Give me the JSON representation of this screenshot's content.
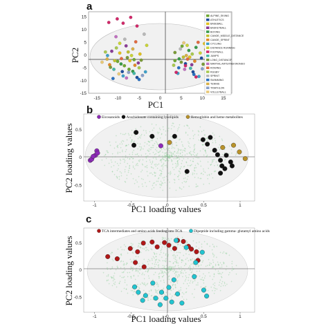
{
  "panels": [
    {
      "letter": "a",
      "xlabel": "PC1",
      "ylabel": "PC2",
      "x_ticks": [
        -15,
        -10,
        -5,
        0,
        5,
        10,
        15
      ],
      "y_ticks": [
        -15,
        -10,
        -5,
        0,
        5,
        10,
        15
      ],
      "legend": [
        {
          "label": "ALPINE_SKIING",
          "color": "#6fa832"
        },
        {
          "label": "ATHLETICS",
          "color": "#1f4e9c"
        },
        {
          "label": "BASEBALL",
          "color": "#e0c020"
        },
        {
          "label": "BASKETBALL",
          "color": "#8a3c96"
        },
        {
          "label": "BOXING",
          "color": "#3a9a4a"
        },
        {
          "label": "CANOE_MIDDLE_DISTANCE",
          "color": "#c0c030"
        },
        {
          "label": "CANOE_SPRINT",
          "color": "#e08a2a"
        },
        {
          "label": "CYCLING",
          "color": "#3fa0c8"
        },
        {
          "label": "DISTANCE RUNNING",
          "color": "#c8d238"
        },
        {
          "label": "FOOTBALL",
          "color": "#d02a6a"
        },
        {
          "label": "JUMPS",
          "color": "#48b8a8"
        },
        {
          "label": "LONG_DISTANCE",
          "color": "#7a9a38"
        },
        {
          "label": "MARTIAL ARTS/TAEKWONDO",
          "color": "#c070c0"
        },
        {
          "label": "ROWING",
          "color": "#e06a40"
        },
        {
          "label": "RUGBY",
          "color": "#a8c850"
        },
        {
          "label": "SPRINT",
          "color": "#b8b8b8"
        },
        {
          "label": "SWIMMING",
          "color": "#2a70c0"
        },
        {
          "label": "TENNIS",
          "color": "#d8b048"
        },
        {
          "label": "TRIATHLON",
          "color": "#8aa0c8"
        },
        {
          "label": "VOLLEYBALL",
          "color": "#e8c878"
        }
      ]
    },
    {
      "letter": "b",
      "xlabel": "PC1 loading values",
      "ylabel": "PC2 loading values",
      "x_ticks": [
        "-1",
        "-0.5",
        "0",
        "0.5",
        "1"
      ],
      "y_ticks": [
        "0.5",
        "0",
        "-0.5"
      ],
      "legend": [
        {
          "label": "Eicosanoids",
          "color": "#8e2bb8"
        },
        {
          "label": "Arachidonate containing lysolipids",
          "color": "#111111"
        },
        {
          "label": "Hemoglobin and heme metabolites",
          "color": "#b8922a"
        }
      ]
    },
    {
      "letter": "c",
      "xlabel": "PC1 loading values",
      "ylabel": "PC2 loading values",
      "x_ticks": [
        "-1",
        "-0.5",
        "0",
        "0.5",
        "1"
      ],
      "y_ticks": [
        "0.5",
        "0",
        "-0.5"
      ],
      "legend": [
        {
          "label": "TCA intermediates and amino acids feeding into TCA",
          "color": "#b01818"
        },
        {
          "label": "Dipeptide including gamma- glutamyl amino acids",
          "color": "#22c4d0"
        }
      ]
    }
  ],
  "chart_data": [
    {
      "type": "scatter",
      "title": "",
      "xlabel": "PC1",
      "ylabel": "PC2",
      "xlim": [
        -17,
        17
      ],
      "ylim": [
        -15,
        17
      ],
      "grid": false,
      "legend_placement": "right",
      "series": [
        {
          "name": "ALPINE_SKIING",
          "points": [
            [
              -8.5,
              -4.2
            ],
            [
              -6.2,
              -1.8
            ],
            [
              -10.1,
              -2.5
            ],
            [
              3.5,
              -2.2
            ],
            [
              5.2,
              3.5
            ],
            [
              -7.4,
              -5.6
            ]
          ]
        },
        {
          "name": "ATHLETICS",
          "points": [
            [
              -5.5,
              -8.8
            ],
            [
              6.0,
              -3.4
            ],
            [
              9.8,
              -1.2
            ],
            [
              -9.0,
              -6.5
            ],
            [
              7.8,
              -6.6
            ]
          ]
        },
        {
          "name": "BASEBALL",
          "points": [
            [
              -7.2,
              -2.2
            ],
            [
              7.0,
              -0.8
            ],
            [
              -4.8,
              0.4
            ],
            [
              10.5,
              4.5
            ],
            [
              -9.6,
              0.8
            ]
          ]
        },
        {
          "name": "BASKETBALL",
          "points": [
            [
              -11.5,
              1.5
            ],
            [
              -8.1,
              3.6
            ],
            [
              7.5,
              -3.8
            ],
            [
              -5.2,
              -3.1
            ]
          ]
        },
        {
          "name": "BOXING",
          "points": [
            [
              -9.3,
              -3.5
            ],
            [
              4.5,
              -1.5
            ],
            [
              8.5,
              3.0
            ],
            [
              -6.5,
              -6.4
            ],
            [
              6.8,
              1.8
            ]
          ]
        },
        {
          "name": "CANOE_MIDDLE_DISTANCE",
          "points": [
            [
              -10.8,
              -2.2
            ],
            [
              5.5,
              -0.8
            ],
            [
              -7.6,
              1.2
            ]
          ]
        },
        {
          "name": "CANOE_SPRINT",
          "points": [
            [
              -6.0,
              -4.0
            ],
            [
              8.2,
              -2.4
            ],
            [
              -12.0,
              -3.8
            ],
            [
              10.8,
              2.2
            ]
          ]
        },
        {
          "name": "CYCLING",
          "points": [
            [
              -12.5,
              -0.2
            ],
            [
              4.2,
              -7.2
            ],
            [
              -3.5,
              -6.6
            ],
            [
              9.2,
              -8.4
            ],
            [
              -8.8,
              -8.2
            ]
          ]
        },
        {
          "name": "DISTANCE RUNNING",
          "points": [
            [
              -9.6,
              4.6
            ],
            [
              -6.8,
              -0.2
            ],
            [
              6.4,
              3.8
            ],
            [
              -3.2,
              3.8
            ],
            [
              9.5,
              0.8
            ]
          ]
        },
        {
          "name": "FOOTBALL",
          "points": [
            [
              -10.2,
              14.2
            ],
            [
              -7.0,
              14.8
            ],
            [
              -8.8,
              12.5
            ],
            [
              -12.2,
              12.8
            ],
            [
              -5.5,
              11.4
            ],
            [
              6.0,
              -4.2
            ],
            [
              3.8,
              -6.8
            ],
            [
              8.5,
              -8.6
            ]
          ]
        },
        {
          "name": "JUMPS",
          "points": [
            [
              -6.2,
              -7.2
            ],
            [
              7.2,
              -5.2
            ],
            [
              -11.0,
              -5.6
            ]
          ]
        },
        {
          "name": "LONG_DISTANCE",
          "points": [
            [
              -11.8,
              -4.8
            ],
            [
              -7.8,
              -1.0
            ],
            [
              5.0,
              -2.8
            ],
            [
              10.2,
              -3.6
            ],
            [
              -4.5,
              -2.0
            ],
            [
              3.5,
              1.0
            ]
          ]
        },
        {
          "name": "MARTIAL ARTS/TAEKWONDO",
          "points": [
            [
              -8.0,
              -9.0
            ],
            [
              5.8,
              -5.6
            ],
            [
              -10.5,
              7.2
            ]
          ]
        },
        {
          "name": "ROWING",
          "points": [
            [
              -5.8,
              5.2
            ],
            [
              9.0,
              5.0
            ],
            [
              -9.2,
              -1.4
            ],
            [
              6.5,
              -1.6
            ]
          ]
        },
        {
          "name": "RUGBY",
          "points": [
            [
              -10.4,
              2.8
            ],
            [
              3.2,
              -4.0
            ],
            [
              -5.0,
              -5.0
            ],
            [
              7.6,
              0.4
            ],
            [
              -13.0,
              1.2
            ]
          ]
        },
        {
          "name": "SPRINT",
          "points": [
            [
              -8.4,
              6.2
            ],
            [
              4.8,
              2.4
            ],
            [
              -3.8,
              8.2
            ]
          ]
        },
        {
          "name": "SWIMMING",
          "points": [
            [
              -5.0,
              -9.6
            ],
            [
              8.0,
              -7.6
            ],
            [
              -11.2,
              -9.2
            ],
            [
              4.4,
              -5.0
            ]
          ]
        },
        {
          "name": "TENNIS",
          "points": [
            [
              -6.5,
              2.4
            ],
            [
              6.2,
              -0.2
            ],
            [
              -12.6,
              -1.6
            ]
          ]
        },
        {
          "name": "TRIATHLON",
          "points": [
            [
              -7.5,
              -6.8
            ],
            [
              10.0,
              -5.4
            ],
            [
              -4.2,
              -8.0
            ]
          ]
        },
        {
          "name": "VOLLEYBALL",
          "points": [
            [
              -9.8,
              -7.4
            ],
            [
              5.6,
              4.8
            ],
            [
              -13.8,
              -2.8
            ]
          ]
        }
      ]
    },
    {
      "type": "scatter",
      "title": "",
      "xlabel": "PC1 loading values",
      "ylabel": "PC2 loading values",
      "xlim": [
        -1.15,
        1.2
      ],
      "ylim": [
        -0.78,
        0.78
      ],
      "grid": false,
      "legend_placement": "top",
      "series": [
        {
          "name": "Eicosanoids",
          "points": [
            [
              -0.97,
              0.12
            ],
            [
              -0.99,
              0.04
            ],
            [
              -0.96,
              0.08
            ],
            [
              -1.06,
              -0.05
            ],
            [
              -1.04,
              -0.03
            ],
            [
              -1.02,
              0.02
            ],
            [
              -0.09,
              0.21
            ]
          ]
        },
        {
          "name": "Arachidonate containing lysolipids",
          "points": [
            [
              -0.43,
              0.45
            ],
            [
              -0.21,
              0.38
            ],
            [
              -0.46,
              0.22
            ],
            [
              0.1,
              0.38
            ],
            [
              0.49,
              0.32
            ],
            [
              0.59,
              0.36
            ],
            [
              0.55,
              0.24
            ],
            [
              0.65,
              0.13
            ],
            [
              0.69,
              0.05
            ],
            [
              0.73,
              -0.05
            ],
            [
              0.75,
              -0.15
            ],
            [
              0.79,
              -0.2
            ],
            [
              0.73,
              -0.28
            ],
            [
              0.87,
              -0.08
            ],
            [
              0.89,
              -0.15
            ],
            [
              0.27,
              -0.25
            ],
            [
              0.81,
              0.04
            ]
          ]
        },
        {
          "name": "Hemoglobin and heme metabolites",
          "points": [
            [
              0.91,
              0.22
            ],
            [
              0.99,
              0.1
            ],
            [
              0.76,
              0.18
            ],
            [
              0.03,
              0.27
            ],
            [
              1.07,
              -0.02
            ]
          ]
        }
      ]
    },
    {
      "type": "scatter",
      "title": "",
      "xlabel": "PC1 loading values",
      "ylabel": "PC2 loading values",
      "xlim": [
        -1.15,
        1.2
      ],
      "ylim": [
        -0.78,
        0.78
      ],
      "grid": false,
      "legend_placement": "top",
      "series": [
        {
          "name": "TCA intermediates and amino acids feeding into TCA",
          "points": [
            [
              -0.82,
              0.25
            ],
            [
              -0.69,
              0.21
            ],
            [
              -0.51,
              0.4
            ],
            [
              -0.41,
              0.34
            ],
            [
              -0.33,
              0.5
            ],
            [
              -0.21,
              0.52
            ],
            [
              -0.14,
              0.43
            ],
            [
              -0.04,
              0.51
            ],
            [
              0.02,
              0.46
            ],
            [
              0.1,
              0.4
            ],
            [
              0.14,
              0.55
            ],
            [
              0.22,
              0.53
            ],
            [
              0.29,
              0.44
            ],
            [
              0.33,
              0.39
            ],
            [
              0.4,
              0.34
            ],
            [
              -0.44,
              0.14
            ],
            [
              -0.32,
              0.06
            ],
            [
              0.42,
              0.18
            ]
          ]
        },
        {
          "name": "Dipeptide including gamma- glutamyl amino acids",
          "points": [
            [
              0.12,
              0.55
            ],
            [
              0.26,
              0.42
            ],
            [
              0.48,
              0.33
            ],
            [
              0.39,
              0.14
            ],
            [
              0.09,
              -0.18
            ],
            [
              0.37,
              -0.12
            ],
            [
              -0.2,
              -0.24
            ],
            [
              -0.45,
              -0.31
            ],
            [
              -0.4,
              -0.41
            ],
            [
              -0.3,
              -0.47
            ],
            [
              -0.16,
              -0.52
            ],
            [
              -0.08,
              -0.41
            ],
            [
              0.02,
              -0.32
            ],
            [
              0.14,
              -0.44
            ],
            [
              0.06,
              -0.59
            ],
            [
              0.2,
              -0.61
            ],
            [
              -0.1,
              -0.64
            ],
            [
              -0.34,
              -0.56
            ],
            [
              0.5,
              -0.37
            ],
            [
              0.54,
              -0.48
            ],
            [
              -0.02,
              -0.52
            ]
          ]
        }
      ]
    }
  ]
}
